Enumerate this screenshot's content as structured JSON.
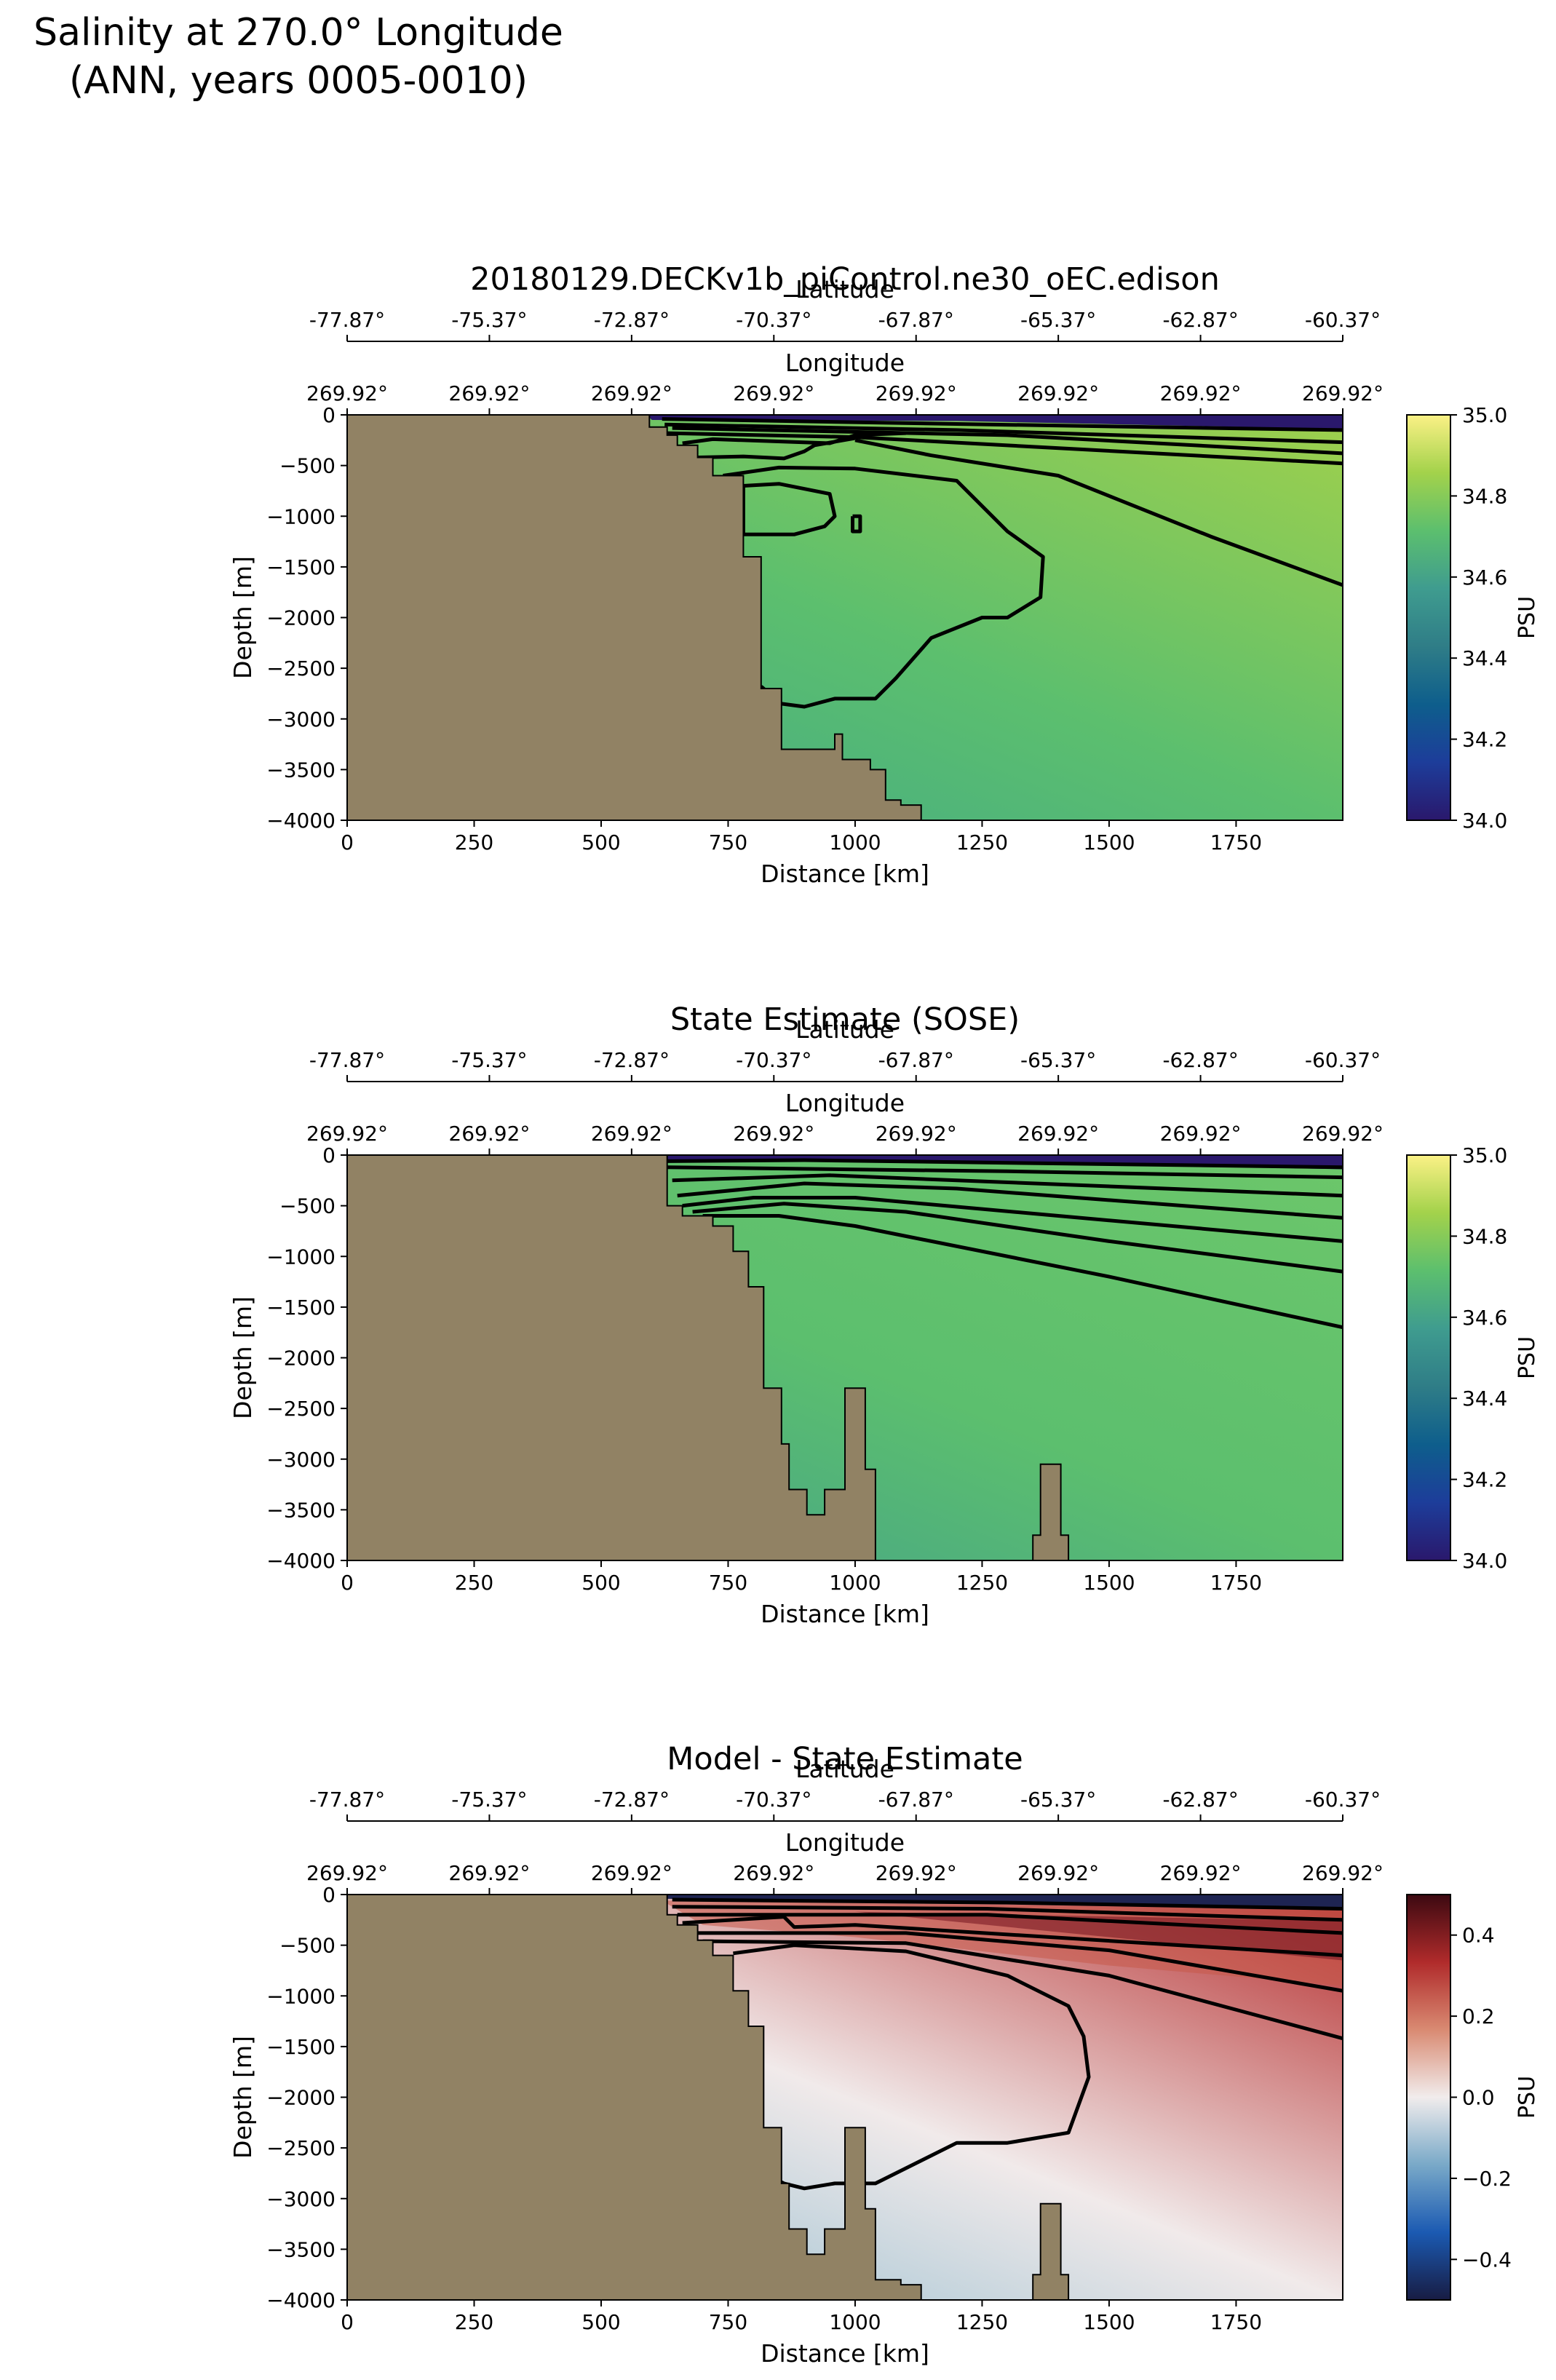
{
  "figure": {
    "suptitle_line1": "Salinity at 270.0° Longitude",
    "suptitle_line2": "(ANN, years 0005-0010)"
  },
  "chart_data": [
    {
      "type": "heatmap",
      "title": "20180129.DECKv1b_piControl.ne30_oEC.edison",
      "xlabel": "Distance [km]",
      "ylabel": "Depth [m]",
      "top_axis1_label": "Latitude",
      "top_axis1_ticks": [
        "-77.87°",
        "-75.37°",
        "-72.87°",
        "-70.37°",
        "-67.87°",
        "-65.37°",
        "-62.87°",
        "-60.37°"
      ],
      "top_axis2_label": "Longitude",
      "top_axis2_ticks": [
        "269.92°",
        "269.92°",
        "269.92°",
        "269.92°",
        "269.92°",
        "269.92°",
        "269.92°",
        "269.92°"
      ],
      "xlim": [
        0,
        1960
      ],
      "ylim": [
        -4000,
        0
      ],
      "xticks": [
        0,
        250,
        500,
        750,
        1000,
        1250,
        1500,
        1750
      ],
      "yticks": [
        0,
        -500,
        -1000,
        -1500,
        -2000,
        -2500,
        -3000,
        -3500,
        -4000
      ],
      "colorbar": {
        "label": "PSU",
        "range": [
          34.0,
          35.0
        ],
        "ticks": [
          "35.0",
          "34.8",
          "34.6",
          "34.4",
          "34.2",
          "34.0"
        ],
        "colormap": "haline"
      },
      "land_color": "#918264",
      "bathymetry": [
        [
          0,
          0
        ],
        [
          595,
          0
        ],
        [
          595,
          -120
        ],
        [
          630,
          -120
        ],
        [
          630,
          -200
        ],
        [
          650,
          -200
        ],
        [
          650,
          -300
        ],
        [
          690,
          -300
        ],
        [
          690,
          -420
        ],
        [
          720,
          -420
        ],
        [
          720,
          -600
        ],
        [
          780,
          -600
        ],
        [
          780,
          -1400
        ],
        [
          815,
          -1400
        ],
        [
          815,
          -2700
        ],
        [
          855,
          -2700
        ],
        [
          855,
          -3300
        ],
        [
          960,
          -3300
        ],
        [
          960,
          -3150
        ],
        [
          975,
          -3150
        ],
        [
          975,
          -3400
        ],
        [
          1030,
          -3400
        ],
        [
          1030,
          -3500
        ],
        [
          1060,
          -3500
        ],
        [
          1060,
          -3800
        ],
        [
          1090,
          -3800
        ],
        [
          1090,
          -3850
        ],
        [
          1130,
          -3850
        ],
        [
          1130,
          -4000
        ],
        [
          0,
          -4000
        ]
      ],
      "contours": [
        [
          [
            620,
            -40
          ],
          [
            1200,
            -90
          ],
          [
            1960,
            -150
          ]
        ],
        [
          [
            625,
            -95
          ],
          [
            1200,
            -150
          ],
          [
            1960,
            -270
          ]
        ],
        [
          [
            640,
            -130
          ],
          [
            1300,
            -200
          ],
          [
            1960,
            -380
          ]
        ],
        [
          [
            630,
            -180
          ],
          [
            1000,
            -220
          ],
          [
            1960,
            -480
          ]
        ],
        [
          [
            660,
            -280
          ],
          [
            720,
            -240
          ],
          [
            950,
            -280
          ],
          [
            1000,
            -200
          ],
          [
            1100,
            -180
          ]
        ],
        [
          [
            690,
            -420
          ],
          [
            780,
            -410
          ],
          [
            860,
            -430
          ],
          [
            900,
            -360
          ],
          [
            920,
            -300
          ],
          [
            1000,
            -230
          ]
        ],
        [
          [
            780,
            -700
          ],
          [
            850,
            -680
          ],
          [
            950,
            -780
          ],
          [
            960,
            -1000
          ],
          [
            940,
            -1100
          ],
          [
            880,
            -1180
          ],
          [
            780,
            -1180
          ],
          [
            780,
            -700
          ]
        ],
        [
          [
            995,
            -1000
          ],
          [
            1010,
            -1000
          ],
          [
            1010,
            -1150
          ],
          [
            995,
            -1150
          ],
          [
            995,
            -1000
          ]
        ],
        [
          [
            740,
            -600
          ],
          [
            850,
            -520
          ],
          [
            1000,
            -530
          ],
          [
            1200,
            -650
          ],
          [
            1300,
            -1150
          ],
          [
            1370,
            -1400
          ],
          [
            1365,
            -1800
          ],
          [
            1300,
            -2000
          ],
          [
            1250,
            -2000
          ],
          [
            1150,
            -2200
          ],
          [
            1080,
            -2600
          ],
          [
            1040,
            -2800
          ],
          [
            960,
            -2800
          ],
          [
            900,
            -2880
          ],
          [
            855,
            -2850
          ],
          [
            815,
            -2680
          ]
        ],
        [
          [
            1000,
            -250
          ],
          [
            1150,
            -400
          ],
          [
            1400,
            -600
          ],
          [
            1700,
            -1200
          ],
          [
            1960,
            -1680
          ]
        ]
      ],
      "background_gradient": [
        "#3ea68a",
        "#5cbf6e",
        "#9fd04c"
      ]
    },
    {
      "type": "heatmap",
      "title": "State Estimate (SOSE)",
      "xlabel": "Distance [km]",
      "ylabel": "Depth [m]",
      "top_axis1_label": "Latitude",
      "top_axis1_ticks": [
        "-77.87°",
        "-75.37°",
        "-72.87°",
        "-70.37°",
        "-67.87°",
        "-65.37°",
        "-62.87°",
        "-60.37°"
      ],
      "top_axis2_label": "Longitude",
      "top_axis2_ticks": [
        "269.92°",
        "269.92°",
        "269.92°",
        "269.92°",
        "269.92°",
        "269.92°",
        "269.92°",
        "269.92°"
      ],
      "xlim": [
        0,
        1960
      ],
      "ylim": [
        -4000,
        0
      ],
      "xticks": [
        0,
        250,
        500,
        750,
        1000,
        1250,
        1500,
        1750
      ],
      "yticks": [
        0,
        -500,
        -1000,
        -1500,
        -2000,
        -2500,
        -3000,
        -3500,
        -4000
      ],
      "colorbar": {
        "label": "PSU",
        "range": [
          34.0,
          35.0
        ],
        "ticks": [
          "35.0",
          "34.8",
          "34.6",
          "34.4",
          "34.2",
          "34.0"
        ],
        "colormap": "haline"
      },
      "land_color": "#918264",
      "bathymetry": [
        [
          0,
          0
        ],
        [
          630,
          0
        ],
        [
          630,
          -500
        ],
        [
          660,
          -500
        ],
        [
          660,
          -600
        ],
        [
          720,
          -600
        ],
        [
          720,
          -700
        ],
        [
          760,
          -700
        ],
        [
          760,
          -950
        ],
        [
          790,
          -950
        ],
        [
          790,
          -1300
        ],
        [
          820,
          -1300
        ],
        [
          820,
          -2300
        ],
        [
          855,
          -2300
        ],
        [
          855,
          -2850
        ],
        [
          870,
          -2850
        ],
        [
          870,
          -3300
        ],
        [
          905,
          -3300
        ],
        [
          905,
          -3550
        ],
        [
          940,
          -3550
        ],
        [
          940,
          -3300
        ],
        [
          980,
          -3300
        ],
        [
          980,
          -2300
        ],
        [
          1020,
          -2300
        ],
        [
          1020,
          -3100
        ],
        [
          1040,
          -3100
        ],
        [
          1040,
          -4000
        ],
        [
          1350,
          -4000
        ],
        [
          1350,
          -3750
        ],
        [
          1365,
          -3750
        ],
        [
          1365,
          -3050
        ],
        [
          1405,
          -3050
        ],
        [
          1405,
          -3750
        ],
        [
          1420,
          -3750
        ],
        [
          1420,
          -4000
        ],
        [
          0,
          -4000
        ]
      ],
      "contours": [
        [
          [
            630,
            -60
          ],
          [
            900,
            -50
          ],
          [
            1960,
            -120
          ]
        ],
        [
          [
            630,
            -120
          ],
          [
            1300,
            -160
          ],
          [
            1960,
            -220
          ]
        ],
        [
          [
            640,
            -250
          ],
          [
            950,
            -200
          ],
          [
            1960,
            -400
          ]
        ],
        [
          [
            650,
            -400
          ],
          [
            900,
            -280
          ],
          [
            1200,
            -330
          ],
          [
            1960,
            -620
          ]
        ],
        [
          [
            660,
            -500
          ],
          [
            800,
            -420
          ],
          [
            1000,
            -420
          ],
          [
            1400,
            -600
          ],
          [
            1960,
            -850
          ]
        ],
        [
          [
            680,
            -560
          ],
          [
            860,
            -480
          ],
          [
            1100,
            -560
          ],
          [
            1500,
            -850
          ],
          [
            1960,
            -1150
          ]
        ],
        [
          [
            700,
            -600
          ],
          [
            850,
            -600
          ],
          [
            1000,
            -700
          ],
          [
            1500,
            -1200
          ],
          [
            1960,
            -1700
          ]
        ]
      ],
      "background_gradient": [
        "#3f9c8f",
        "#5cbf6e",
        "#6cc66a"
      ]
    },
    {
      "type": "heatmap",
      "title": "Model - State Estimate",
      "xlabel": "Distance [km]",
      "ylabel": "Depth [m]",
      "top_axis1_label": "Latitude",
      "top_axis1_ticks": [
        "-77.87°",
        "-75.37°",
        "-72.87°",
        "-70.37°",
        "-67.87°",
        "-65.37°",
        "-62.87°",
        "-60.37°"
      ],
      "top_axis2_label": "Longitude",
      "top_axis2_ticks": [
        "269.92°",
        "269.92°",
        "269.92°",
        "269.92°",
        "269.92°",
        "269.92°",
        "269.92°",
        "269.92°"
      ],
      "xlim": [
        0,
        1960
      ],
      "ylim": [
        -4000,
        0
      ],
      "xticks": [
        0,
        250,
        500,
        750,
        1000,
        1250,
        1500,
        1750
      ],
      "yticks": [
        0,
        -500,
        -1000,
        -1500,
        -2000,
        -2500,
        -3000,
        -3500,
        -4000
      ],
      "colorbar": {
        "label": "PSU",
        "range": [
          -0.5,
          0.5
        ],
        "ticks": [
          "0.4",
          "0.2",
          "0.0",
          "−0.2",
          "−0.4"
        ],
        "colormap": "balance"
      },
      "land_color": "#918264",
      "bathymetry": [
        [
          0,
          0
        ],
        [
          630,
          0
        ],
        [
          630,
          -200
        ],
        [
          650,
          -200
        ],
        [
          650,
          -300
        ],
        [
          690,
          -300
        ],
        [
          690,
          -450
        ],
        [
          720,
          -450
        ],
        [
          720,
          -600
        ],
        [
          760,
          -600
        ],
        [
          760,
          -950
        ],
        [
          790,
          -950
        ],
        [
          790,
          -1300
        ],
        [
          820,
          -1300
        ],
        [
          820,
          -2300
        ],
        [
          855,
          -2300
        ],
        [
          855,
          -2850
        ],
        [
          870,
          -2850
        ],
        [
          870,
          -3300
        ],
        [
          905,
          -3300
        ],
        [
          905,
          -3550
        ],
        [
          940,
          -3550
        ],
        [
          940,
          -3300
        ],
        [
          980,
          -3300
        ],
        [
          980,
          -2300
        ],
        [
          1020,
          -2300
        ],
        [
          1020,
          -3100
        ],
        [
          1040,
          -3100
        ],
        [
          1040,
          -3800
        ],
        [
          1090,
          -3800
        ],
        [
          1090,
          -3850
        ],
        [
          1130,
          -3850
        ],
        [
          1130,
          -4000
        ],
        [
          1350,
          -4000
        ],
        [
          1350,
          -3750
        ],
        [
          1365,
          -3750
        ],
        [
          1365,
          -3050
        ],
        [
          1405,
          -3050
        ],
        [
          1405,
          -3750
        ],
        [
          1420,
          -3750
        ],
        [
          1420,
          -4000
        ],
        [
          0,
          -4000
        ]
      ],
      "contours": [
        [
          [
            640,
            -50
          ],
          [
            1300,
            -80
          ],
          [
            1960,
            -140
          ]
        ],
        [
          [
            640,
            -120
          ],
          [
            1260,
            -140
          ],
          [
            1960,
            -250
          ]
        ],
        [
          [
            650,
            -200
          ],
          [
            1260,
            -200
          ],
          [
            1960,
            -380
          ]
        ],
        [
          [
            660,
            -280
          ],
          [
            860,
            -220
          ],
          [
            880,
            -320
          ],
          [
            1000,
            -300
          ],
          [
            1960,
            -600
          ]
        ],
        [
          [
            680,
            -380
          ],
          [
            1100,
            -380
          ],
          [
            1500,
            -550
          ],
          [
            1960,
            -950
          ]
        ],
        [
          [
            700,
            -460
          ],
          [
            1100,
            -480
          ],
          [
            1500,
            -800
          ],
          [
            1960,
            -1420
          ]
        ],
        [
          [
            760,
            -580
          ],
          [
            880,
            -500
          ],
          [
            1100,
            -560
          ],
          [
            1300,
            -800
          ],
          [
            1420,
            -1100
          ],
          [
            1450,
            -1400
          ],
          [
            1460,
            -1800
          ],
          [
            1420,
            -2350
          ],
          [
            1300,
            -2450
          ],
          [
            1200,
            -2450
          ],
          [
            1100,
            -2700
          ],
          [
            1040,
            -2850
          ],
          [
            960,
            -2850
          ],
          [
            900,
            -2900
          ],
          [
            860,
            -2850
          ],
          [
            820,
            -2750
          ]
        ]
      ],
      "background_gradient": [
        "#7fb2c9",
        "#f1eaea",
        "#b52c2c"
      ]
    }
  ]
}
